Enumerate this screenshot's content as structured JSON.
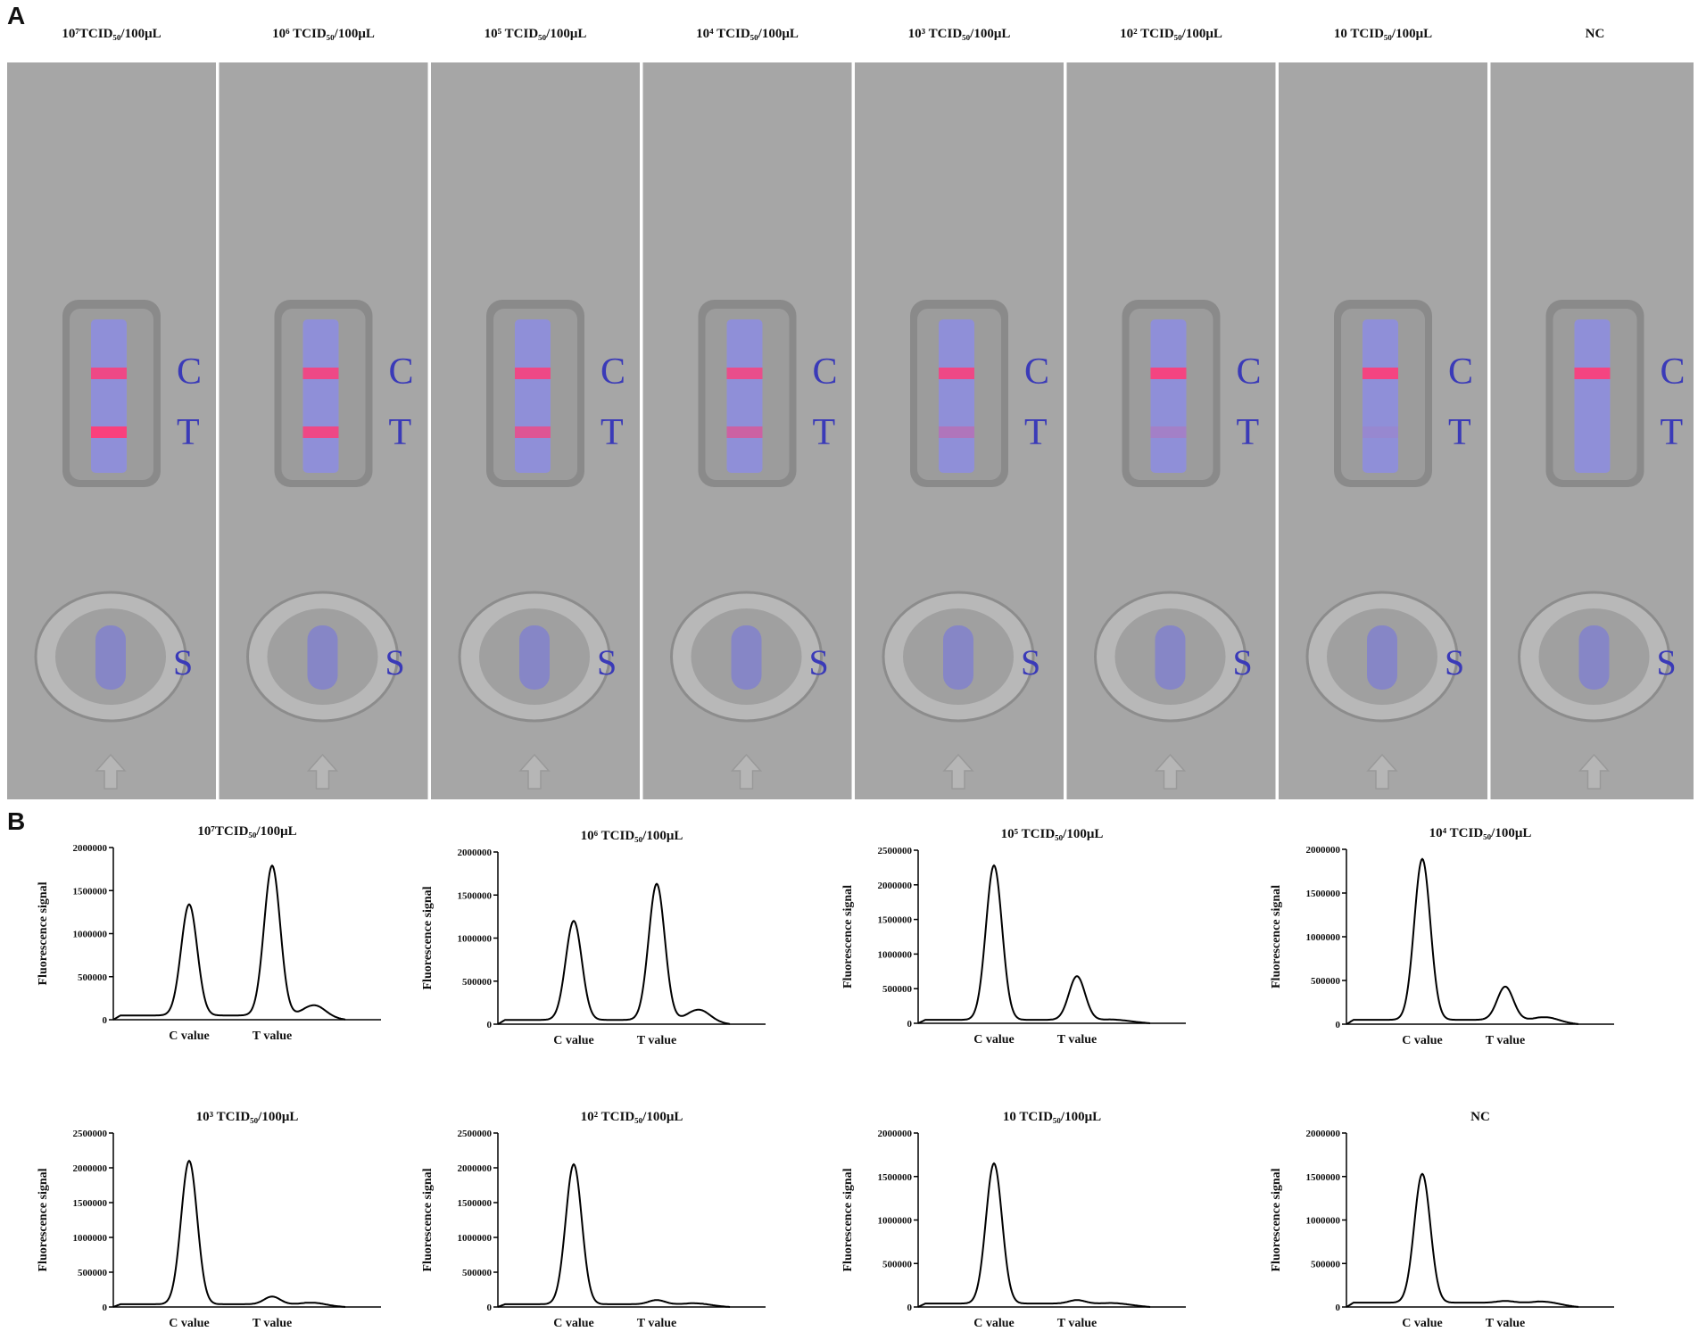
{
  "panel_a": {
    "letter": "A",
    "strips": [
      {
        "label": "10⁷TCID₅₀/100μL",
        "c_intensity": 0.85,
        "t_intensity": 0.95
      },
      {
        "label": "10⁶ TCID₅₀/100μL",
        "c_intensity": 0.85,
        "t_intensity": 0.85
      },
      {
        "label": "10⁵ TCID₅₀/100μL",
        "c_intensity": 0.85,
        "t_intensity": 0.7
      },
      {
        "label": "10⁴ TCID₅₀/100μL",
        "c_intensity": 0.8,
        "t_intensity": 0.55
      },
      {
        "label": "10³ TCID₅₀/100μL",
        "c_intensity": 0.85,
        "t_intensity": 0.3
      },
      {
        "label": "10² TCID₅₀/100μL",
        "c_intensity": 0.9,
        "t_intensity": 0.18
      },
      {
        "label": "10 TCID₅₀/100μL",
        "c_intensity": 0.9,
        "t_intensity": 0.08
      },
      {
        "label": "NC",
        "c_intensity": 0.9,
        "t_intensity": 0.0
      }
    ],
    "marks": {
      "c": "C",
      "t": "T",
      "s": "S"
    },
    "colors": {
      "strip_bg": "#a6a6a6",
      "window": "#8f8fd8",
      "band": "#ff3c78",
      "mark_text": "#3a3ab8"
    }
  },
  "chart_data": [
    {
      "type": "line",
      "title": "10⁷TCID₅₀/100μL",
      "ylabel": "Fluorescence signal",
      "ylim": [
        0,
        2000000
      ],
      "yticks": [
        0,
        500000,
        1000000,
        1500000,
        2000000
      ],
      "xlabels": [
        "C value",
        "T value"
      ],
      "peaks": {
        "baseline": 50000,
        "c": 1340000,
        "t": 1790000,
        "shoulder": 180000
      }
    },
    {
      "type": "line",
      "title": "10⁶ TCID₅₀/100μL",
      "ylabel": "Fluorescence signal",
      "ylim": [
        0,
        2000000
      ],
      "yticks": [
        0,
        500000,
        1000000,
        1500000,
        2000000
      ],
      "xlabels": [
        "C value",
        "T value"
      ],
      "peaks": {
        "baseline": 50000,
        "c": 1200000,
        "t": 1630000,
        "shoulder": 180000
      }
    },
    {
      "type": "line",
      "title": "10⁵ TCID₅₀/100μL",
      "ylabel": "Fluorescence signal",
      "ylim": [
        0,
        2500000
      ],
      "yticks": [
        0,
        500000,
        1000000,
        1500000,
        2000000,
        2500000
      ],
      "xlabels": [
        "C value",
        "T value"
      ],
      "peaks": {
        "baseline": 50000,
        "c": 2280000,
        "t": 680000,
        "shoulder": 60000
      }
    },
    {
      "type": "line",
      "title": "10⁴ TCID₅₀/100μL",
      "ylabel": "Fluorescence signal",
      "ylim": [
        0,
        2000000
      ],
      "yticks": [
        0,
        500000,
        1000000,
        1500000,
        2000000
      ],
      "xlabels": [
        "C value",
        "T value"
      ],
      "peaks": {
        "baseline": 50000,
        "c": 1890000,
        "t": 430000,
        "shoulder": 90000
      }
    },
    {
      "type": "line",
      "title": "10³ TCID₅₀/100μL",
      "ylabel": "Fluorescence signal",
      "ylim": [
        0,
        2500000
      ],
      "yticks": [
        0,
        500000,
        1000000,
        1500000,
        2000000,
        2500000
      ],
      "xlabels": [
        "C value",
        "T value"
      ],
      "peaks": {
        "baseline": 40000,
        "c": 2100000,
        "t": 150000,
        "shoulder": 70000
      }
    },
    {
      "type": "line",
      "title": "10² TCID₅₀/100μL",
      "ylabel": "Fluorescence signal",
      "ylim": [
        0,
        2500000
      ],
      "yticks": [
        0,
        500000,
        1000000,
        1500000,
        2000000,
        2500000
      ],
      "xlabels": [
        "C value",
        "T value"
      ],
      "peaks": {
        "baseline": 40000,
        "c": 2050000,
        "t": 100000,
        "shoulder": 60000
      }
    },
    {
      "type": "line",
      "title": "10 TCID₅₀/100μL",
      "ylabel": "Fluorescence signal",
      "ylim": [
        0,
        2000000
      ],
      "yticks": [
        0,
        500000,
        1000000,
        1500000,
        2000000
      ],
      "xlabels": [
        "C value",
        "T value"
      ],
      "peaks": {
        "baseline": 40000,
        "c": 1650000,
        "t": 80000,
        "shoulder": 50000
      }
    },
    {
      "type": "line",
      "title": "NC",
      "ylabel": "Fluorescence signal",
      "ylim": [
        0,
        2000000
      ],
      "yticks": [
        0,
        500000,
        1000000,
        1500000,
        2000000
      ],
      "xlabels": [
        "C value",
        "T value"
      ],
      "peaks": {
        "baseline": 50000,
        "c": 1530000,
        "t": 70000,
        "shoulder": 70000
      }
    }
  ],
  "panel_b": {
    "letter": "B"
  }
}
